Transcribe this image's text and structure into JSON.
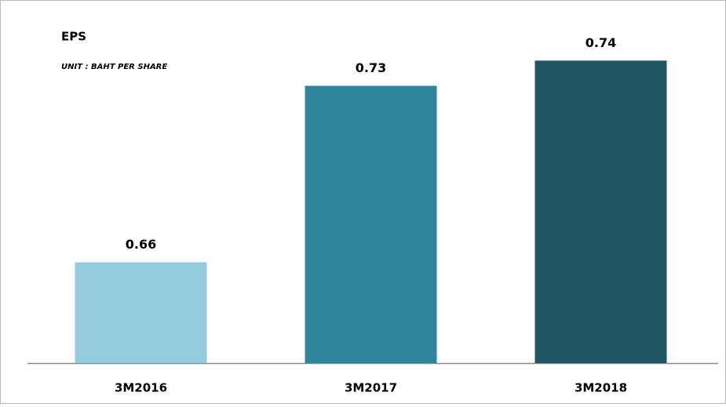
{
  "chart_data": {
    "type": "bar",
    "title": "EPS",
    "subtitle": "UNIT : BAHT PER SHARE",
    "categories": [
      "3M2016",
      "3M2017",
      "3M2018"
    ],
    "values": [
      0.66,
      0.73,
      0.74
    ],
    "colors": [
      "#94cbdd",
      "#2e859c",
      "#215563"
    ],
    "ylim": [
      0.62,
      0.76
    ]
  }
}
